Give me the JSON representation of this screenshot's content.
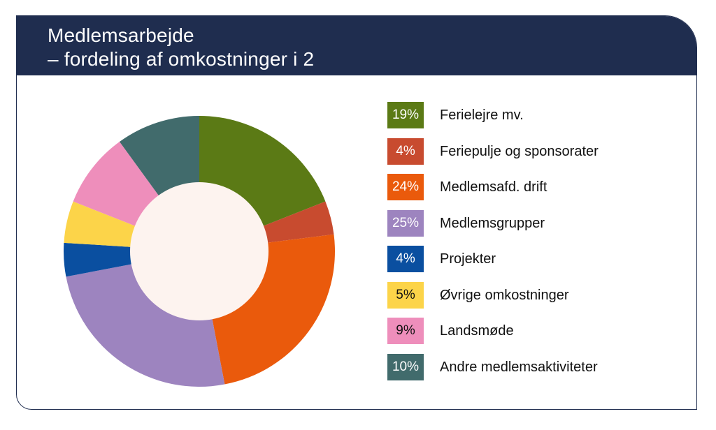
{
  "header": {
    "title_line1": "Medlemsarbejde",
    "title_line2": "– fordeling af omkostninger i 2"
  },
  "chart_data": {
    "type": "pie",
    "title": "Medlemsarbejde – fordeling af omkostninger i 2",
    "donut": true,
    "legend_position": "right",
    "slices": [
      {
        "label": "Ferielejre mv.",
        "value": 19,
        "display": "19%",
        "color": "#5b7a15",
        "text_color": "#ffffff"
      },
      {
        "label": "Feriepulje og sponsorater",
        "value": 4,
        "display": "4%",
        "color": "#c84b2f",
        "text_color": "#ffffff"
      },
      {
        "label": "Medlemsafd. drift",
        "value": 24,
        "display": "24%",
        "color": "#ea5a0c",
        "text_color": "#ffffff"
      },
      {
        "label": "Medlemsgrupper",
        "value": 25,
        "display": "25%",
        "color": "#9d84bf",
        "text_color": "#ffffff"
      },
      {
        "label": "Projekter",
        "value": 4,
        "display": "4%",
        "color": "#0a4fa0",
        "text_color": "#ffffff"
      },
      {
        "label": "Øvrige omkostninger",
        "value": 5,
        "display": "5%",
        "color": "#fcd449",
        "text_color": "#111111"
      },
      {
        "label": "Landsmøde",
        "value": 9,
        "display": "9%",
        "color": "#ee8ebb",
        "text_color": "#111111"
      },
      {
        "label": "Andre medlemsaktiviteter",
        "value": 10,
        "display": "10%",
        "color": "#416b6c",
        "text_color": "#ffffff"
      }
    ],
    "center_color": "#fdf3ef"
  }
}
